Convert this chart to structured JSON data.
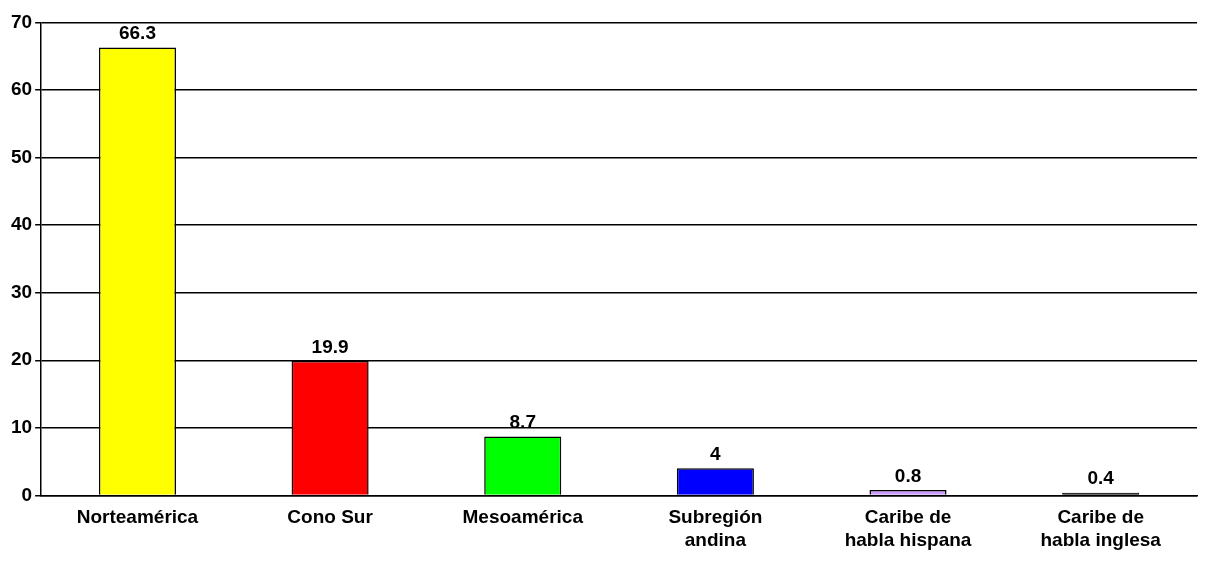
{
  "chart_data": {
    "type": "bar",
    "categories": [
      "Norteamérica",
      "Cono Sur",
      "Mesoamérica",
      "Subregión andina",
      "Caribe de habla hispana",
      "Caribe de habla inglesa"
    ],
    "values": [
      66.3,
      19.9,
      8.7,
      4,
      0.8,
      0.4
    ],
    "colors": [
      "#ffff00",
      "#ff0000",
      "#00ff00",
      "#0000ff",
      "#cc99ff",
      "#000000"
    ],
    "ylim": [
      0,
      70
    ],
    "yticks": [
      0,
      10,
      20,
      30,
      40,
      50,
      60,
      70
    ],
    "grid": "y",
    "data_labels": true,
    "legend": false
  }
}
